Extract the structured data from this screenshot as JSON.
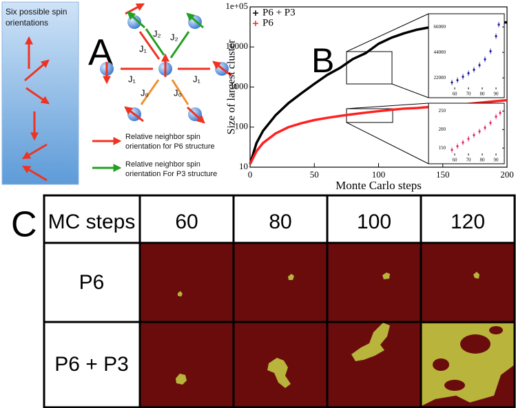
{
  "panel_a": {
    "label": "A",
    "box_title": [
      "Six possible spin",
      "orientations"
    ],
    "couplings": [
      "J₂",
      "J₂",
      "J₁",
      "J₁",
      "J₁",
      "J₀",
      "J₀"
    ],
    "legend": [
      [
        "Relative neighbor spin",
        "orientation for P6 structure"
      ],
      [
        "Relative neighbor spin",
        "orientation For P3 structure"
      ]
    ]
  },
  "panel_b": {
    "label": "B"
  },
  "chart_data": [
    {
      "type": "line",
      "xlabel": "Monte Carlo steps",
      "ylabel": "Size of largest cluster",
      "ylog": true,
      "xlim": [
        0,
        200
      ],
      "ylim": [
        10,
        100000
      ],
      "xticks": [
        0,
        50,
        100,
        150,
        200
      ],
      "yticks": [
        10,
        100,
        1000,
        10000,
        {
          "value": 100000,
          "label": "1e+05"
        }
      ],
      "legend": "upper left",
      "x": [
        0,
        5,
        10,
        20,
        30,
        40,
        50,
        60,
        70,
        80,
        90,
        100,
        110,
        120,
        130,
        140,
        150,
        160,
        170,
        180,
        190,
        200
      ],
      "series": [
        {
          "name": "P6 + P3",
          "color": "#000000",
          "values": [
            12,
            40,
            80,
            200,
            400,
            700,
            1200,
            2000,
            3000,
            5000,
            7000,
            12000,
            17000,
            22000,
            27000,
            31000,
            34000,
            36000,
            38000,
            39000,
            40000,
            41000
          ]
        },
        {
          "name": "P6",
          "color": "#ff2020",
          "values": [
            12,
            25,
            40,
            70,
            100,
            125,
            150,
            170,
            190,
            210,
            230,
            250,
            270,
            290,
            300,
            320,
            340,
            360,
            380,
            410,
            440,
            470
          ]
        }
      ]
    },
    {
      "type": "scatter",
      "xlim": [
        55,
        95
      ],
      "ylim": [
        12000,
        75000
      ],
      "xticks": [
        60,
        70,
        80,
        90
      ],
      "yticks": [
        22000,
        44000,
        66000
      ],
      "x": [
        58,
        62,
        66,
        70,
        74,
        78,
        82,
        86,
        90,
        92
      ],
      "series": [
        {
          "color": "#1a1aa0",
          "values": [
            18000,
            20000,
            23000,
            26000,
            29000,
            33000,
            38000,
            45000,
            58000,
            68000
          ]
        }
      ]
    },
    {
      "type": "scatter",
      "xlim": [
        55,
        95
      ],
      "ylim": [
        130,
        260
      ],
      "xticks": [
        60,
        70,
        80,
        90
      ],
      "yticks": [
        150,
        200,
        250
      ],
      "x": [
        58,
        62,
        66,
        70,
        74,
        78,
        82,
        86,
        90,
        93
      ],
      "series": [
        {
          "color": "#e0206a",
          "values": [
            145,
            155,
            165,
            175,
            185,
            195,
            205,
            218,
            235,
            245
          ]
        }
      ]
    }
  ],
  "panel_c": {
    "label": "C",
    "table": {
      "header": [
        "MC steps",
        "60",
        "80",
        "100",
        "120"
      ],
      "rows": [
        [
          "P6"
        ],
        [
          "P6 + P3"
        ]
      ]
    }
  }
}
